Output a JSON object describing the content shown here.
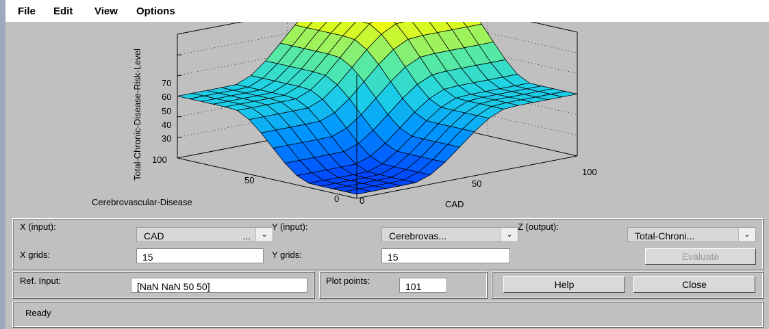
{
  "menu": {
    "items": [
      "File",
      "Edit",
      "View",
      "Options"
    ]
  },
  "plot": {
    "zlabel": "Total-Chronic-Disease-Risk-Level",
    "z_ticks": [
      "70",
      "60",
      "50",
      "40",
      "30"
    ],
    "y_axis_label": "Cerebrovascular-Disease",
    "y_ticks": [
      "100",
      "50",
      "0"
    ],
    "x_axis_label": "CAD",
    "x_ticks": [
      "0",
      "50",
      "100"
    ]
  },
  "controls": {
    "x_input_label": "X (input):",
    "x_input_value": "CAD",
    "x_input_dots": "...",
    "y_input_label": "Y (input):",
    "y_input_value": "Cerebrovas...",
    "z_output_label": "Z (output):",
    "z_output_value": "Total-Chroni...",
    "x_grids_label": "X grids:",
    "x_grids_value": "15",
    "y_grids_label": "Y grids:",
    "y_grids_value": "15",
    "evaluate_label": "Evaluate",
    "ref_input_label": "Ref. Input:",
    "ref_input_value": "[NaN NaN 50 50]",
    "plot_points_label": "Plot points:",
    "plot_points_value": "101",
    "help_label": "Help",
    "close_label": "Close"
  },
  "status": {
    "text": "Ready"
  }
}
